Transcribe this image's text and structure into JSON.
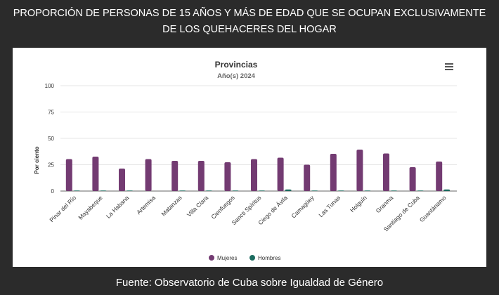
{
  "header": {
    "title_line1": "PROPORCIÓN DE PERSONAS DE 15 AÑOS Y MÁS DE EDAD QUE SE OCUPAN EXCLUSIVAMENTE",
    "title_line2": "DE LOS QUEHACERES DEL HOGAR"
  },
  "footer": {
    "source": "Fuente: Observatorio de Cuba sobre Igualdad de Género"
  },
  "chart_data": {
    "type": "bar",
    "title": "Provincias",
    "subtitle": "Año(s) 2024",
    "xlabel": "",
    "ylabel": "Por ciento",
    "ylim": [
      0,
      100
    ],
    "yticks": [
      0,
      25,
      50,
      75,
      100
    ],
    "grid": true,
    "legend_position": "bottom-center",
    "categories": [
      "Pinar del Río",
      "Mayabeque",
      "La Habana",
      "Artemisa",
      "Matanzas",
      "Villa Clara",
      "Cienfuegos",
      "Sancti Spíritus",
      "Ciego de Ávila",
      "Camagüey",
      "Las Tunas",
      "Holguín",
      "Granma",
      "Santiago de Cuba",
      "Guantánamo"
    ],
    "series": [
      {
        "name": "Mujeres",
        "color": "#733b72",
        "values": [
          30.3,
          32.7,
          21.3,
          30.3,
          28.7,
          28.7,
          27.3,
          30.3,
          31.7,
          25.0,
          35.3,
          39.3,
          35.7,
          22.7,
          28.0
        ]
      },
      {
        "name": "Hombres",
        "color": "#1b6b5f",
        "values": [
          0.5,
          0.5,
          0.5,
          0,
          0.5,
          0.5,
          0.5,
          0.5,
          1.5,
          0.5,
          0.5,
          0.5,
          0.5,
          0.5,
          1.5
        ]
      }
    ]
  }
}
